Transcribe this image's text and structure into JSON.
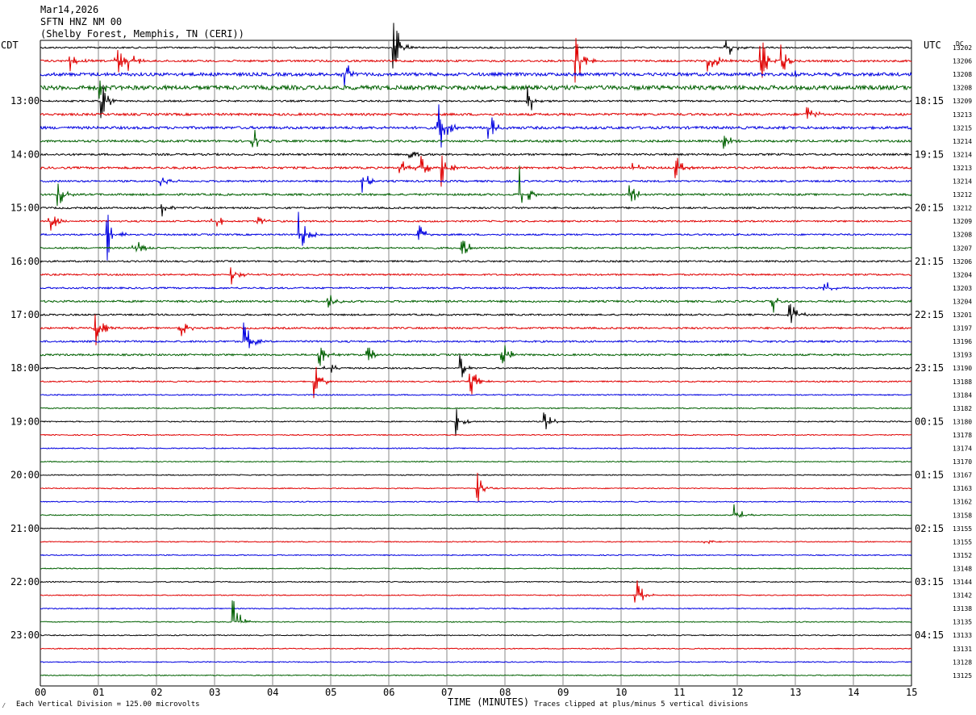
{
  "header": {
    "date": "Mar14,2026",
    "station": "SFTN HNZ NM 00",
    "location": "(Shelby Forest, Memphis, TN (CERI))"
  },
  "left_axis_label": "CDT",
  "right_axis_label": "UTC",
  "offset_column_label": "DC",
  "footer": {
    "logo_glyph": "⁄",
    "scale_note": "Each Vertical Division =  125.00 microvolts",
    "xlabel": "TIME (MINUTES)",
    "clip_note": "Traces clipped at plus/minus 5 vertical divisions"
  },
  "colors": {
    "black": "#000000",
    "red": "#e00000",
    "blue": "#0000e0",
    "green": "#006000",
    "grid": "#888888"
  },
  "chart_data": {
    "type": "helicorder",
    "xlim": [
      0,
      15
    ],
    "xticks": [
      "00",
      "01",
      "02",
      "03",
      "04",
      "05",
      "06",
      "07",
      "08",
      "09",
      "10",
      "11",
      "12",
      "13",
      "14",
      "15"
    ],
    "minutes_per_trace": 15,
    "trace_count": 48,
    "color_cycle": [
      "black",
      "red",
      "blue",
      "green"
    ],
    "left_time_labels": [
      {
        "trace": 4,
        "label": "13:00"
      },
      {
        "trace": 8,
        "label": "14:00"
      },
      {
        "trace": 12,
        "label": "15:00"
      },
      {
        "trace": 16,
        "label": "16:00"
      },
      {
        "trace": 20,
        "label": "17:00"
      },
      {
        "trace": 24,
        "label": "18:00"
      },
      {
        "trace": 28,
        "label": "19:00"
      },
      {
        "trace": 32,
        "label": "20:00"
      },
      {
        "trace": 36,
        "label": "21:00"
      },
      {
        "trace": 40,
        "label": "22:00"
      },
      {
        "trace": 44,
        "label": "23:00"
      }
    ],
    "right_time_labels": [
      {
        "trace": 4,
        "label": "18:15"
      },
      {
        "trace": 8,
        "label": "19:15"
      },
      {
        "trace": 12,
        "label": "20:15"
      },
      {
        "trace": 16,
        "label": "21:15"
      },
      {
        "trace": 20,
        "label": "22:15"
      },
      {
        "trace": 24,
        "label": "23:15"
      },
      {
        "trace": 28,
        "label": "00:15"
      },
      {
        "trace": 32,
        "label": "01:15"
      },
      {
        "trace": 36,
        "label": "02:15"
      },
      {
        "trace": 40,
        "label": "03:15"
      },
      {
        "trace": 44,
        "label": "04:15"
      }
    ],
    "dc_offsets": [
      "13202",
      "13206",
      "13208",
      "13208",
      "13209",
      "13213",
      "13215",
      "13214",
      "13214",
      "13213",
      "13214",
      "13212",
      "13212",
      "13209",
      "13208",
      "13207",
      "13206",
      "13204",
      "13203",
      "13204",
      "13201",
      "13197",
      "13196",
      "13193",
      "13190",
      "13188",
      "13184",
      "13182",
      "13180",
      "13178",
      "13174",
      "13170",
      "13167",
      "13163",
      "13162",
      "13158",
      "13155",
      "13155",
      "13152",
      "13148",
      "13144",
      "13142",
      "13138",
      "13135",
      "13133",
      "13131",
      "13128",
      "13125"
    ],
    "noise_level": [
      1.0,
      1.2,
      2.0,
      2.6,
      1.0,
      1.4,
      1.6,
      1.3,
      1.2,
      1.3,
      1.1,
      1.2,
      1.1,
      1.0,
      1.0,
      1.0,
      1.0,
      1.0,
      1.0,
      1.2,
      1.0,
      1.1,
      1.1,
      1.1,
      0.9,
      0.8,
      0.7,
      0.7,
      0.7,
      0.6,
      0.6,
      0.6,
      0.6,
      0.6,
      0.6,
      0.6,
      0.6,
      0.6,
      0.6,
      0.6,
      0.6,
      0.6,
      0.6,
      0.6,
      0.6,
      0.6,
      0.6,
      0.6
    ],
    "events": [
      {
        "trace": 0,
        "minute": 6.08,
        "amplitude": 3.5
      },
      {
        "trace": 0,
        "minute": 11.8,
        "amplitude": 1.5
      },
      {
        "trace": 1,
        "minute": 0.52,
        "amplitude": 2.0
      },
      {
        "trace": 1,
        "minute": 1.3,
        "amplitude": 1.8
      },
      {
        "trace": 1,
        "minute": 1.5,
        "amplitude": 2.2
      },
      {
        "trace": 1,
        "minute": 9.2,
        "amplitude": 3.5
      },
      {
        "trace": 1,
        "minute": 11.5,
        "amplitude": 2.3
      },
      {
        "trace": 1,
        "minute": 12.4,
        "amplitude": 3.0
      },
      {
        "trace": 1,
        "minute": 12.75,
        "amplitude": 2.0
      },
      {
        "trace": 2,
        "minute": 5.2,
        "amplitude": 2.8
      },
      {
        "trace": 2,
        "minute": 12.9,
        "amplitude": 1.0
      },
      {
        "trace": 3,
        "minute": 1.0,
        "amplitude": 1.2
      },
      {
        "trace": 4,
        "minute": 1.05,
        "amplitude": 2.5
      },
      {
        "trace": 4,
        "minute": 8.4,
        "amplitude": 2.5
      },
      {
        "trace": 5,
        "minute": 13.2,
        "amplitude": 1.3
      },
      {
        "trace": 6,
        "minute": 6.85,
        "amplitude": 3.5
      },
      {
        "trace": 6,
        "minute": 7.7,
        "amplitude": 2.5
      },
      {
        "trace": 7,
        "minute": 3.65,
        "amplitude": 2.2
      },
      {
        "trace": 7,
        "minute": 11.75,
        "amplitude": 1.3
      },
      {
        "trace": 8,
        "minute": 6.3,
        "amplitude": 1.0
      },
      {
        "trace": 9,
        "minute": 6.2,
        "amplitude": 2.0
      },
      {
        "trace": 9,
        "minute": 6.55,
        "amplitude": 1.5
      },
      {
        "trace": 9,
        "minute": 6.9,
        "amplitude": 2.0
      },
      {
        "trace": 9,
        "minute": 10.15,
        "amplitude": 1.2
      },
      {
        "trace": 9,
        "minute": 10.9,
        "amplitude": 2.0
      },
      {
        "trace": 10,
        "minute": 2.05,
        "amplitude": 1.8
      },
      {
        "trace": 10,
        "minute": 5.55,
        "amplitude": 1.8
      },
      {
        "trace": 11,
        "minute": 0.3,
        "amplitude": 1.8
      },
      {
        "trace": 11,
        "minute": 8.25,
        "amplitude": 3.0
      },
      {
        "trace": 11,
        "minute": 10.1,
        "amplitude": 2.2
      },
      {
        "trace": 12,
        "minute": 2.1,
        "amplitude": 1.3
      },
      {
        "trace": 13,
        "minute": 0.15,
        "amplitude": 2.0
      },
      {
        "trace": 13,
        "minute": 2.95,
        "amplitude": 2.2
      },
      {
        "trace": 13,
        "minute": 3.75,
        "amplitude": 1.0
      },
      {
        "trace": 14,
        "minute": 1.15,
        "amplitude": 3.0
      },
      {
        "trace": 14,
        "minute": 4.45,
        "amplitude": 3.0
      },
      {
        "trace": 14,
        "minute": 6.5,
        "amplitude": 1.5
      },
      {
        "trace": 15,
        "minute": 1.6,
        "amplitude": 1.5
      },
      {
        "trace": 15,
        "minute": 7.25,
        "amplitude": 1.5
      },
      {
        "trace": 17,
        "minute": 3.25,
        "amplitude": 2.0
      },
      {
        "trace": 18,
        "minute": 13.5,
        "amplitude": 1.2
      },
      {
        "trace": 19,
        "minute": 4.95,
        "amplitude": 1.0
      },
      {
        "trace": 19,
        "minute": 12.6,
        "amplitude": 1.5
      },
      {
        "trace": 20,
        "minute": 12.9,
        "amplitude": 1.8
      },
      {
        "trace": 21,
        "minute": 0.95,
        "amplitude": 2.0
      },
      {
        "trace": 21,
        "minute": 2.4,
        "amplitude": 1.7
      },
      {
        "trace": 22,
        "minute": 3.5,
        "amplitude": 3.0
      },
      {
        "trace": 23,
        "minute": 4.8,
        "amplitude": 1.5
      },
      {
        "trace": 23,
        "minute": 5.6,
        "amplitude": 1.6
      },
      {
        "trace": 23,
        "minute": 7.95,
        "amplitude": 1.6
      },
      {
        "trace": 24,
        "minute": 4.9,
        "amplitude": 2.0
      },
      {
        "trace": 24,
        "minute": 7.2,
        "amplitude": 1.8
      },
      {
        "trace": 25,
        "minute": 4.7,
        "amplitude": 2.5
      },
      {
        "trace": 25,
        "minute": 7.4,
        "amplitude": 2.0
      },
      {
        "trace": 28,
        "minute": 7.15,
        "amplitude": 1.6
      },
      {
        "trace": 28,
        "minute": 8.65,
        "amplitude": 2.0
      },
      {
        "trace": 33,
        "minute": 7.5,
        "amplitude": 2.2
      },
      {
        "trace": 35,
        "minute": 11.95,
        "amplitude": 1.4
      },
      {
        "trace": 37,
        "minute": 11.45,
        "amplitude": 0.4
      },
      {
        "trace": 41,
        "minute": 10.25,
        "amplitude": 2.0
      },
      {
        "trace": 43,
        "minute": 3.3,
        "amplitude": 3.5
      }
    ]
  }
}
